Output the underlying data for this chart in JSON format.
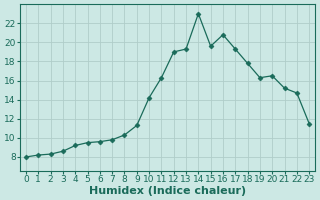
{
  "x": [
    0,
    1,
    2,
    3,
    4,
    5,
    6,
    7,
    8,
    9,
    10,
    11,
    12,
    13,
    14,
    15,
    16,
    17,
    18,
    19,
    20,
    21,
    22,
    23
  ],
  "y": [
    8.0,
    8.2,
    8.3,
    8.6,
    9.2,
    9.5,
    9.6,
    9.8,
    10.3,
    11.3,
    14.2,
    16.3,
    19.0,
    19.3,
    23.0,
    19.6,
    20.8,
    19.3,
    17.8,
    16.3,
    16.5,
    15.2,
    14.7,
    11.5
  ],
  "line_color": "#1a6b5a",
  "marker": "D",
  "marker_size": 2.5,
  "bg_color": "#cce8e4",
  "grid_color": "#b0cdc9",
  "xlabel": "Humidex (Indice chaleur)",
  "xlim": [
    -0.5,
    23.5
  ],
  "ylim": [
    6.5,
    24
  ],
  "yticks": [
    8,
    10,
    12,
    14,
    16,
    18,
    20,
    22
  ],
  "xticks": [
    0,
    1,
    2,
    3,
    4,
    5,
    6,
    7,
    8,
    9,
    10,
    11,
    12,
    13,
    14,
    15,
    16,
    17,
    18,
    19,
    20,
    21,
    22,
    23
  ],
  "tick_label_fontsize": 6.5,
  "xlabel_fontsize": 8
}
